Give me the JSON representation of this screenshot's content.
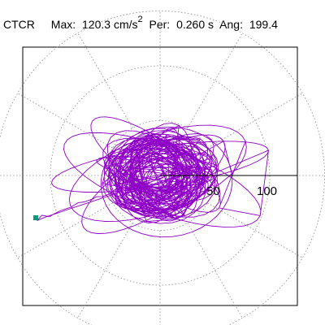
{
  "header": {
    "station": "CTCR",
    "max_label": "Max:",
    "max_value": "120.3 cm/s",
    "max_unit_exp": "2",
    "per_label": "Per:",
    "per_value": "0.260 s",
    "ang_label": "Ang:",
    "ang_value": "199.4"
  },
  "chart_data": {
    "type": "line",
    "title": "CTCR  Max:  120.3 cm/s2  Per:  0.260 s  Ang: 199.4",
    "polar_grid": {
      "rings": [
        50,
        100,
        150
      ],
      "spoke_step_deg": 30,
      "style": "dotted"
    },
    "tick_labels": [
      "50",
      "100"
    ],
    "r_max": 120.3,
    "max_angle_deg": 199.4,
    "colors": {
      "trace": "#8e00c6",
      "marker": "#0a9a7a",
      "grid": "#888888",
      "axis": "#000000"
    }
  }
}
